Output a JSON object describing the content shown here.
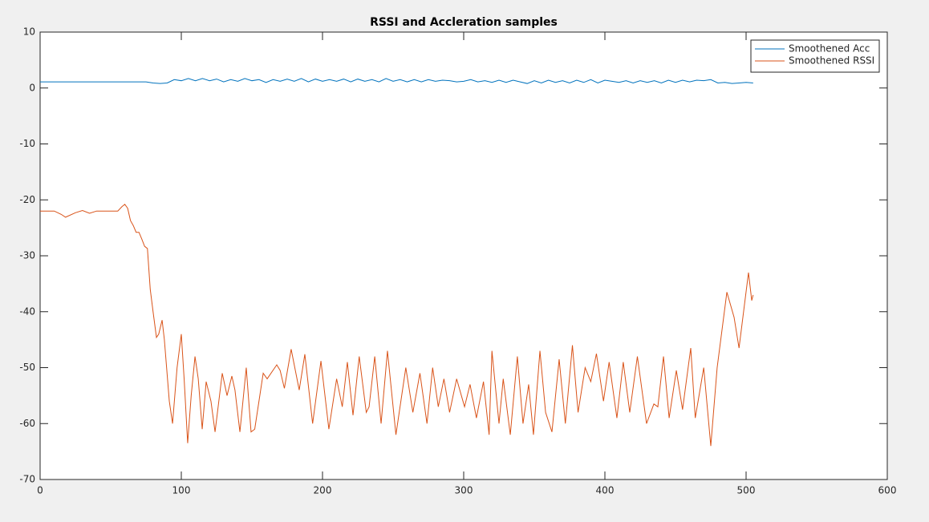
{
  "chart_data": {
    "type": "line",
    "title": "RSSI and Accleration samples",
    "xlim": [
      0,
      600
    ],
    "xticks": [
      0,
      100,
      200,
      300,
      400,
      500,
      600
    ],
    "ylim": [
      -70,
      10
    ],
    "yticks": [
      10,
      0,
      -10,
      -20,
      -30,
      -40,
      -50,
      -60,
      -70
    ],
    "grid": false,
    "legend": "top-right",
    "series": [
      {
        "name": "Smoothened Acc",
        "color": "#0072bd",
        "x": [
          0,
          75,
          80,
          85,
          90,
          95,
          100,
          105,
          110,
          115,
          120,
          125,
          130,
          135,
          140,
          145,
          150,
          155,
          160,
          165,
          170,
          175,
          180,
          185,
          190,
          195,
          200,
          205,
          210,
          215,
          220,
          225,
          230,
          235,
          240,
          245,
          250,
          255,
          260,
          265,
          270,
          275,
          280,
          285,
          290,
          295,
          300,
          305,
          310,
          315,
          320,
          325,
          330,
          335,
          340,
          345,
          350,
          355,
          360,
          365,
          370,
          375,
          380,
          385,
          390,
          395,
          400,
          405,
          410,
          415,
          420,
          425,
          430,
          435,
          440,
          445,
          450,
          455,
          460,
          465,
          470,
          475,
          480,
          485,
          490,
          495,
          500,
          505
        ],
        "values": [
          1.1,
          1.1,
          0.9,
          0.8,
          0.9,
          1.5,
          1.3,
          1.7,
          1.3,
          1.7,
          1.3,
          1.6,
          1.1,
          1.5,
          1.2,
          1.7,
          1.3,
          1.5,
          1.0,
          1.5,
          1.2,
          1.6,
          1.2,
          1.7,
          1.1,
          1.6,
          1.2,
          1.5,
          1.2,
          1.6,
          1.1,
          1.6,
          1.2,
          1.5,
          1.1,
          1.7,
          1.2,
          1.5,
          1.1,
          1.5,
          1.1,
          1.5,
          1.2,
          1.4,
          1.3,
          1.1,
          1.2,
          1.5,
          1.1,
          1.3,
          1.0,
          1.4,
          1.0,
          1.4,
          1.1,
          0.8,
          1.3,
          0.9,
          1.4,
          1.0,
          1.3,
          0.9,
          1.4,
          1.0,
          1.5,
          0.9,
          1.4,
          1.2,
          1.0,
          1.3,
          0.9,
          1.3,
          1.0,
          1.3,
          0.9,
          1.4,
          1.0,
          1.4,
          1.1,
          1.4,
          1.3,
          1.5,
          0.9,
          1.0,
          0.8,
          0.9,
          1.0,
          0.9
        ]
      },
      {
        "name": "Smoothened RSSI",
        "color": "#d95319",
        "x": [
          0,
          10,
          15,
          18,
          25,
          30,
          35,
          40,
          45,
          50,
          55,
          58,
          60,
          62,
          64,
          66,
          68,
          70,
          72,
          74,
          76,
          78,
          80,
          82.4,
          84,
          86.4,
          88,
          91.5,
          93.8,
          97,
          100,
          102,
          104.5,
          107,
          109.7,
          112,
          114.8,
          117.6,
          121,
          123.9,
          129,
          132.4,
          135.8,
          138,
          141.5,
          146,
          149.4,
          152,
          158,
          160.8,
          167.6,
          170,
          173,
          177.8,
          183.5,
          187.5,
          193,
          198.9,
          204.5,
          210,
          214,
          217.6,
          221.6,
          226,
          231,
          233,
          237,
          241.5,
          246,
          252,
          259,
          264,
          269,
          274,
          278,
          282,
          286,
          290,
          295,
          300.6,
          304.5,
          309,
          314,
          318,
          320,
          325,
          328,
          333,
          338,
          342,
          346,
          349.4,
          354,
          358,
          362.5,
          367.6,
          372,
          377,
          381,
          386,
          390,
          394,
          399,
          403,
          408.5,
          413,
          417.6,
          423,
          429.5,
          434.7,
          437.5,
          441.5,
          445.5,
          450.6,
          455,
          460.8,
          464,
          470,
          475,
          479.5,
          486.4,
          491.5,
          495,
          501.7,
          504,
          505
        ],
        "values": [
          -22,
          -22,
          -22.6,
          -23.1,
          -22.3,
          -21.9,
          -22.4,
          -22,
          -22,
          -22,
          -22,
          -21.2,
          -20.8,
          -21.5,
          -23.7,
          -24.6,
          -25.8,
          -25.8,
          -27,
          -28.3,
          -28.7,
          -36,
          -40,
          -44.6,
          -44,
          -41.5,
          -45,
          -56,
          -60,
          -50,
          -44,
          -52,
          -63.5,
          -55,
          -48,
          -52,
          -61,
          -52.5,
          -56,
          -61.5,
          -51,
          -55,
          -51.5,
          -54,
          -61.5,
          -50,
          -61.5,
          -61,
          -51,
          -52,
          -49.5,
          -50.5,
          -53.7,
          -46.7,
          -54,
          -47.6,
          -60,
          -48.8,
          -61,
          -52,
          -57,
          -49,
          -58.5,
          -48,
          -58,
          -57,
          -48,
          -60,
          -47,
          -62,
          -50,
          -58,
          -51,
          -60,
          -50,
          -57,
          -52,
          -58,
          -52,
          -57,
          -53,
          -59,
          -52.5,
          -62,
          -47,
          -60,
          -52,
          -62,
          -48,
          -60,
          -53,
          -62,
          -47,
          -58,
          -61.5,
          -48.5,
          -60,
          -46,
          -58,
          -50,
          -52.5,
          -47.5,
          -56,
          -49,
          -59,
          -49,
          -58,
          -48,
          -60,
          -56.5,
          -57,
          -48,
          -59,
          -50.5,
          -57.5,
          -46.5,
          -59,
          -50,
          -64,
          -50,
          -36.5,
          -41,
          -46.5,
          -33,
          -38,
          -37
        ]
      }
    ]
  }
}
